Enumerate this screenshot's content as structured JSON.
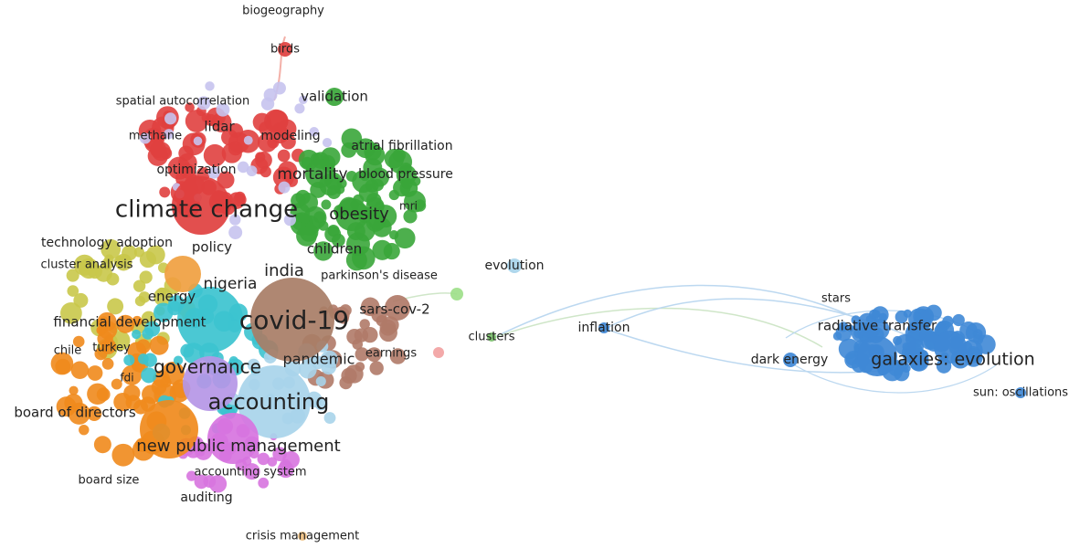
{
  "network": {
    "labels": [
      "biogeography",
      "birds",
      "spatial autocorrelation",
      "validation",
      "lidar",
      "methane",
      "modeling",
      "atrial fibrillation",
      "optimization",
      "mortality",
      "blood pressure",
      "climate change",
      "obesity",
      "mri",
      "technology adoption",
      "policy",
      "children",
      "cluster analysis",
      "india",
      "parkinson's disease",
      "evolution",
      "nigeria",
      "energy",
      "sars-cov-2",
      "covid-19",
      "financial development",
      "clusters",
      "inflation",
      "stars",
      "radiative transfer",
      "chile",
      "turkey",
      "earnings",
      "pandemic",
      "dark energy",
      "galaxies: evolution",
      "fdi",
      "governance",
      "accounting",
      "sun: oscillations",
      "board of directors",
      "new public management",
      "board size",
      "accounting system",
      "auditing",
      "crisis management"
    ]
  }
}
